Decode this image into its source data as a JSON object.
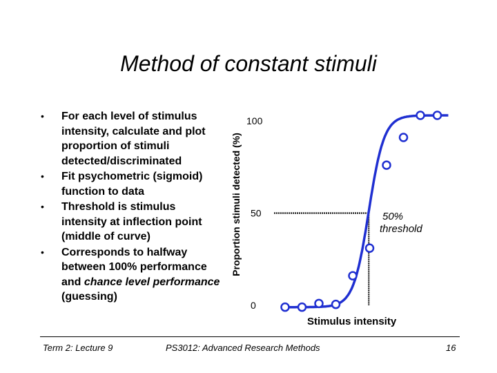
{
  "slide": {
    "title": "Method of constant stimuli",
    "bullet_marker": "•",
    "bullets": [
      "For each level of stimulus intensity, calculate and plot proportion of stimuli detected/discriminated",
      "Fit psychometric (sigmoid) function to data",
      "Threshold is stimulus intensity at inflection point (middle of curve)",
      "Corresponds to halfway between 100% performance and chance level performance (guessing)"
    ],
    "bullet4_parts": [
      "Corresponds to halfway between 100% performance and ",
      "chance level performance",
      " (guessing)"
    ],
    "footer_left": "Term 2: Lecture 9",
    "footer_center": "PS3012: Advanced Research Methods",
    "footer_right": "16"
  },
  "chart_data": {
    "type": "scatter",
    "xlabel": "Stimulus intensity",
    "ylabel": "Proportion stimuli detected (%)",
    "yticks": [
      0,
      50,
      100
    ],
    "ylim": [
      0,
      100
    ],
    "x": [
      1,
      2,
      3,
      4,
      5,
      6,
      7,
      8,
      9,
      10
    ],
    "y": [
      -1,
      -1,
      1,
      0.5,
      16,
      31,
      76,
      91,
      103,
      103
    ],
    "fit_curve": "sigmoid",
    "threshold_label": "50% threshold",
    "threshold_level": 50,
    "threshold_x": 5.95,
    "colors": {
      "points": "#1f2fd1",
      "curve": "#1f2fd1"
    }
  }
}
